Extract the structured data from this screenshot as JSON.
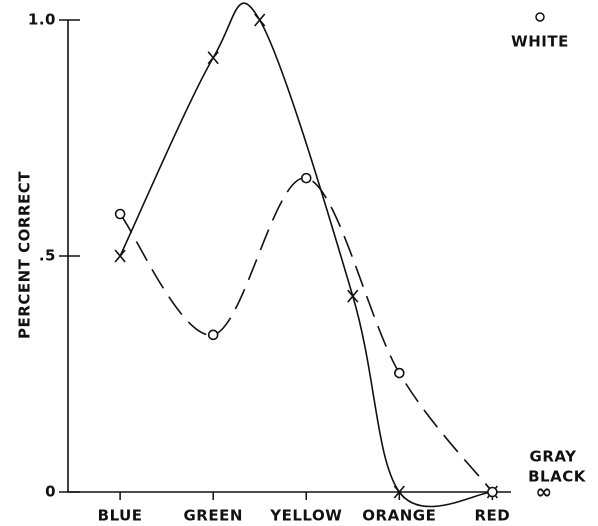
{
  "chart_data": {
    "type": "line",
    "y_label": "PERCENT CORRECT",
    "x": [
      1,
      2,
      2.5,
      3.5,
      4,
      5
    ],
    "xticks": [
      {
        "value": 1,
        "label": "BLUE"
      },
      {
        "value": 2,
        "label": "GREEN"
      },
      {
        "value": 3,
        "label": "YELLOW"
      },
      {
        "value": 4,
        "label": "ORANGE"
      },
      {
        "value": 5,
        "label": "RED"
      }
    ],
    "xlim": [
      0.44,
      5.2
    ],
    "ylim": [
      0,
      1
    ],
    "yticks": [
      0,
      {
        "value": 0.5,
        "label": ".5"
      },
      {
        "value": 1,
        "label": "1.0"
      }
    ],
    "series": [
      {
        "color": "#111111",
        "marker": "x",
        "dash": "solid",
        "x": [
          1,
          2,
          2.5,
          3.5,
          4,
          5
        ],
        "values": [
          0.5,
          0.92,
          1.0,
          0.415,
          0,
          0
        ]
      },
      {
        "color": "#111111",
        "marker": "o",
        "dash": "dashed",
        "x": [
          1,
          2,
          3,
          4,
          5
        ],
        "values": [
          0.589,
          0.333,
          0.665,
          0.252,
          0
        ]
      }
    ],
    "annotations": [
      "WHITE",
      "GRAY",
      "BLACK",
      "∞"
    ]
  }
}
